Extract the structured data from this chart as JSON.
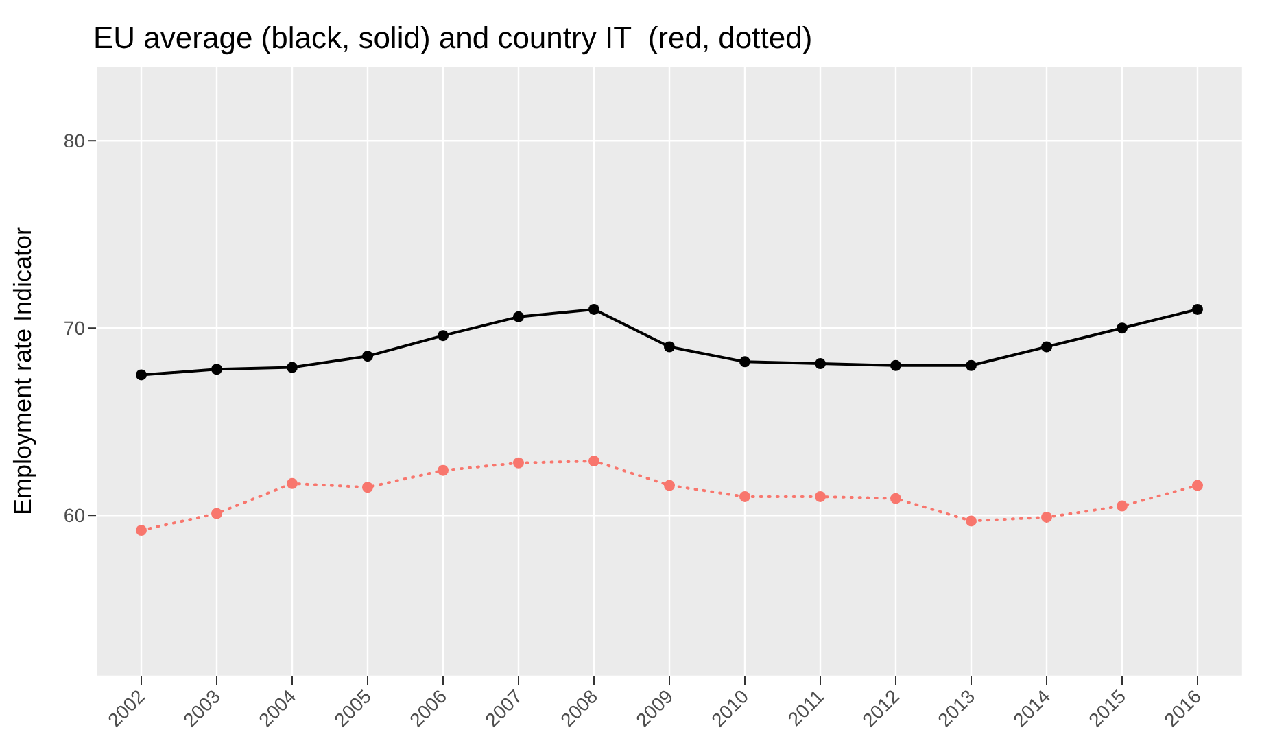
{
  "chart_data": {
    "type": "line",
    "title": "EU average (black, solid) and country IT  (red, dotted)",
    "ylabel": "Employment rate Indicator",
    "categories": [
      "2002",
      "2003",
      "2004",
      "2005",
      "2006",
      "2007",
      "2008",
      "2009",
      "2010",
      "2011",
      "2012",
      "2013",
      "2014",
      "2015",
      "2016"
    ],
    "series": [
      {
        "color": "#000000",
        "line_style": "solid",
        "values": [
          67.5,
          67.8,
          67.9,
          68.5,
          69.6,
          70.6,
          71.0,
          69.0,
          68.2,
          68.1,
          68.0,
          68.0,
          69.0,
          70.0,
          71.0
        ]
      },
      {
        "color": "#f8766d",
        "line_style": "dotted",
        "values": [
          59.2,
          60.1,
          61.7,
          61.5,
          62.4,
          62.8,
          62.9,
          61.6,
          61.0,
          61.0,
          60.9,
          59.7,
          59.9,
          60.5,
          61.6
        ]
      }
    ],
    "ylim": [
      51.4,
      84
    ],
    "yticks": [
      60,
      70,
      80
    ],
    "grid": true,
    "marker": "circle"
  }
}
